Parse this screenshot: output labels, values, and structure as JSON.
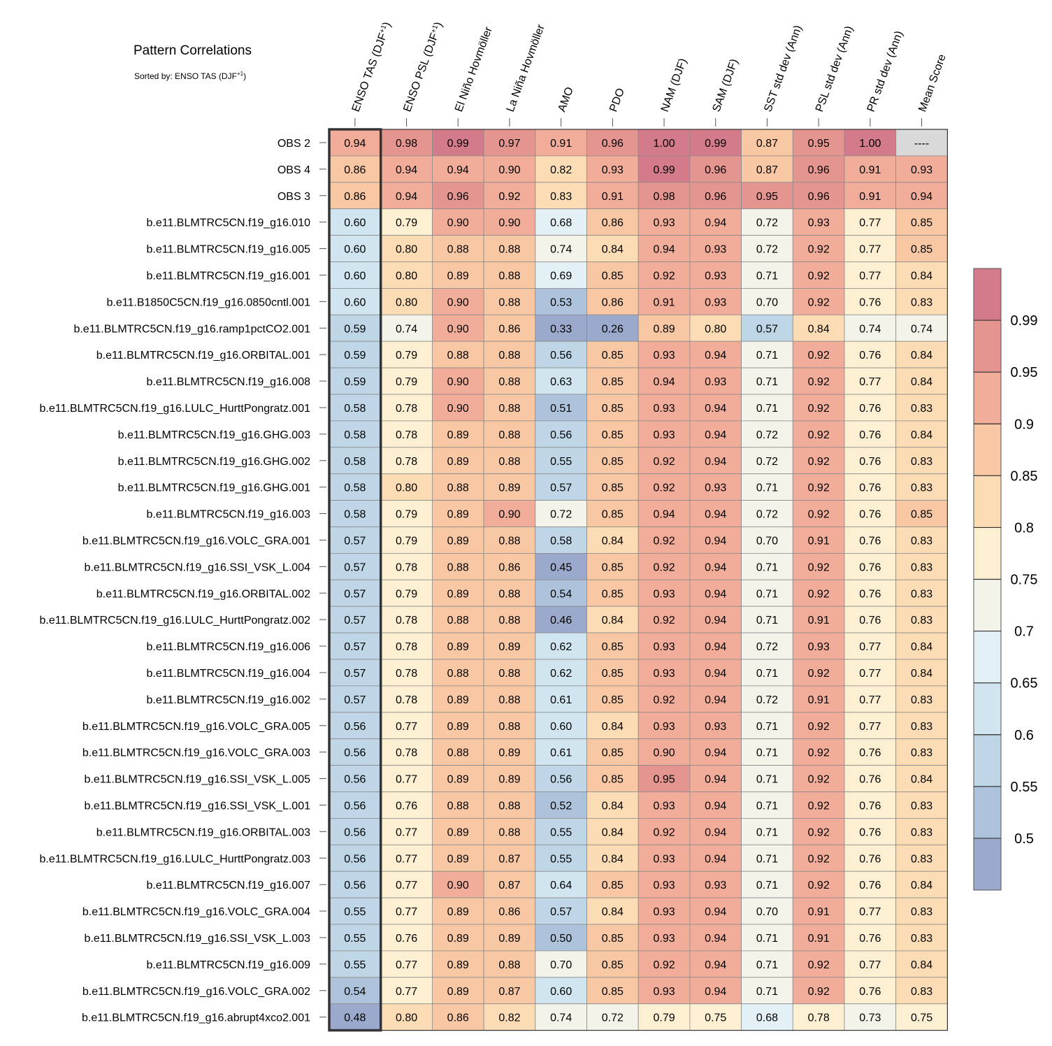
{
  "title": "Pattern Correlations",
  "subtitle_prefix": "Sorted by: ",
  "subtitle_metric": "ENSO TAS (DJF",
  "subtitle_sup": "+1",
  "subtitle_suffix": ")",
  "chart_data": {
    "type": "heatmap",
    "title": "Pattern Correlations",
    "sorted_by": "ENSO TAS (DJF+1)",
    "columns": [
      {
        "text": "ENSO TAS (DJF",
        "sup": "+1",
        "tail": ")"
      },
      {
        "text": "ENSO PSL (DJF",
        "sup": "+1",
        "tail": ")"
      },
      {
        "text": "El Niño Hovmöller",
        "sup": "",
        "tail": ""
      },
      {
        "text": "La Niña Hovmöller",
        "sup": "",
        "tail": ""
      },
      {
        "text": "AMO",
        "sup": "",
        "tail": ""
      },
      {
        "text": "PDO",
        "sup": "",
        "tail": ""
      },
      {
        "text": "NAM (DJF)",
        "sup": "",
        "tail": ""
      },
      {
        "text": "SAM (DJF)",
        "sup": "",
        "tail": ""
      },
      {
        "text": "SST std dev (Ann)",
        "sup": "",
        "tail": ""
      },
      {
        "text": "PSL std dev (Ann)",
        "sup": "",
        "tail": ""
      },
      {
        "text": "PR std dev (Ann)",
        "sup": "",
        "tail": ""
      },
      {
        "text": "Mean Score",
        "sup": "",
        "tail": ""
      }
    ],
    "rows": [
      "OBS 2",
      "OBS 4",
      "OBS 3",
      "b.e11.BLMTRC5CN.f19_g16.010",
      "b.e11.BLMTRC5CN.f19_g16.005",
      "b.e11.BLMTRC5CN.f19_g16.001",
      "b.e11.B1850C5CN.f19_g16.0850cntl.001",
      "b.e11.BLMTRC5CN.f19_g16.ramp1pctCO2.001",
      "b.e11.BLMTRC5CN.f19_g16.ORBITAL.001",
      "b.e11.BLMTRC5CN.f19_g16.008",
      "b.e11.BLMTRC5CN.f19_g16.LULC_HurttPongratz.001",
      "b.e11.BLMTRC5CN.f19_g16.GHG.003",
      "b.e11.BLMTRC5CN.f19_g16.GHG.002",
      "b.e11.BLMTRC5CN.f19_g16.GHG.001",
      "b.e11.BLMTRC5CN.f19_g16.003",
      "b.e11.BLMTRC5CN.f19_g16.VOLC_GRA.001",
      "b.e11.BLMTRC5CN.f19_g16.SSI_VSK_L.004",
      "b.e11.BLMTRC5CN.f19_g16.ORBITAL.002",
      "b.e11.BLMTRC5CN.f19_g16.LULC_HurttPongratz.002",
      "b.e11.BLMTRC5CN.f19_g16.006",
      "b.e11.BLMTRC5CN.f19_g16.004",
      "b.e11.BLMTRC5CN.f19_g16.002",
      "b.e11.BLMTRC5CN.f19_g16.VOLC_GRA.005",
      "b.e11.BLMTRC5CN.f19_g16.VOLC_GRA.003",
      "b.e11.BLMTRC5CN.f19_g16.SSI_VSK_L.005",
      "b.e11.BLMTRC5CN.f19_g16.SSI_VSK_L.001",
      "b.e11.BLMTRC5CN.f19_g16.ORBITAL.003",
      "b.e11.BLMTRC5CN.f19_g16.LULC_HurttPongratz.003",
      "b.e11.BLMTRC5CN.f19_g16.007",
      "b.e11.BLMTRC5CN.f19_g16.VOLC_GRA.004",
      "b.e11.BLMTRC5CN.f19_g16.SSI_VSK_L.003",
      "b.e11.BLMTRC5CN.f19_g16.009",
      "b.e11.BLMTRC5CN.f19_g16.VOLC_GRA.002",
      "b.e11.BLMTRC5CN.f19_g16.abrupt4xco2.001"
    ],
    "values": [
      [
        0.94,
        0.98,
        0.99,
        0.97,
        0.91,
        0.96,
        1.0,
        0.99,
        0.87,
        0.95,
        1.0,
        null
      ],
      [
        0.86,
        0.94,
        0.94,
        0.9,
        0.82,
        0.93,
        0.99,
        0.96,
        0.87,
        0.96,
        0.91,
        0.93
      ],
      [
        0.86,
        0.94,
        0.96,
        0.92,
        0.83,
        0.91,
        0.98,
        0.96,
        0.95,
        0.96,
        0.91,
        0.94
      ],
      [
        0.6,
        0.79,
        0.9,
        0.9,
        0.68,
        0.86,
        0.93,
        0.94,
        0.72,
        0.93,
        0.77,
        0.85
      ],
      [
        0.6,
        0.8,
        0.88,
        0.88,
        0.74,
        0.84,
        0.94,
        0.93,
        0.72,
        0.92,
        0.77,
        0.85
      ],
      [
        0.6,
        0.8,
        0.89,
        0.88,
        0.69,
        0.85,
        0.92,
        0.93,
        0.71,
        0.92,
        0.77,
        0.84
      ],
      [
        0.6,
        0.8,
        0.9,
        0.88,
        0.53,
        0.86,
        0.91,
        0.93,
        0.7,
        0.92,
        0.76,
        0.83
      ],
      [
        0.59,
        0.74,
        0.9,
        0.86,
        0.33,
        0.26,
        0.89,
        0.8,
        0.57,
        0.84,
        0.74,
        0.74
      ],
      [
        0.59,
        0.79,
        0.88,
        0.88,
        0.56,
        0.85,
        0.93,
        0.94,
        0.71,
        0.92,
        0.76,
        0.84
      ],
      [
        0.59,
        0.79,
        0.9,
        0.88,
        0.63,
        0.85,
        0.94,
        0.93,
        0.71,
        0.92,
        0.77,
        0.84
      ],
      [
        0.58,
        0.78,
        0.9,
        0.88,
        0.51,
        0.85,
        0.93,
        0.94,
        0.71,
        0.92,
        0.76,
        0.83
      ],
      [
        0.58,
        0.78,
        0.89,
        0.88,
        0.56,
        0.85,
        0.93,
        0.94,
        0.72,
        0.92,
        0.76,
        0.84
      ],
      [
        0.58,
        0.78,
        0.89,
        0.88,
        0.55,
        0.85,
        0.92,
        0.94,
        0.72,
        0.92,
        0.76,
        0.83
      ],
      [
        0.58,
        0.8,
        0.88,
        0.89,
        0.57,
        0.85,
        0.92,
        0.93,
        0.71,
        0.92,
        0.76,
        0.83
      ],
      [
        0.58,
        0.79,
        0.89,
        0.9,
        0.72,
        0.85,
        0.94,
        0.94,
        0.72,
        0.92,
        0.76,
        0.85
      ],
      [
        0.57,
        0.79,
        0.89,
        0.88,
        0.58,
        0.84,
        0.92,
        0.94,
        0.7,
        0.91,
        0.76,
        0.83
      ],
      [
        0.57,
        0.78,
        0.88,
        0.86,
        0.45,
        0.85,
        0.92,
        0.94,
        0.71,
        0.92,
        0.76,
        0.83
      ],
      [
        0.57,
        0.79,
        0.89,
        0.88,
        0.54,
        0.85,
        0.93,
        0.94,
        0.71,
        0.92,
        0.76,
        0.83
      ],
      [
        0.57,
        0.78,
        0.88,
        0.88,
        0.46,
        0.84,
        0.92,
        0.94,
        0.71,
        0.91,
        0.76,
        0.83
      ],
      [
        0.57,
        0.78,
        0.89,
        0.89,
        0.62,
        0.85,
        0.93,
        0.94,
        0.72,
        0.93,
        0.77,
        0.84
      ],
      [
        0.57,
        0.78,
        0.88,
        0.88,
        0.62,
        0.85,
        0.93,
        0.94,
        0.71,
        0.92,
        0.77,
        0.84
      ],
      [
        0.57,
        0.78,
        0.89,
        0.88,
        0.61,
        0.85,
        0.92,
        0.94,
        0.72,
        0.91,
        0.77,
        0.83
      ],
      [
        0.56,
        0.77,
        0.89,
        0.88,
        0.6,
        0.84,
        0.93,
        0.93,
        0.71,
        0.92,
        0.77,
        0.83
      ],
      [
        0.56,
        0.78,
        0.88,
        0.89,
        0.61,
        0.85,
        0.9,
        0.94,
        0.71,
        0.92,
        0.76,
        0.83
      ],
      [
        0.56,
        0.77,
        0.89,
        0.89,
        0.56,
        0.85,
        0.95,
        0.94,
        0.71,
        0.92,
        0.76,
        0.84
      ],
      [
        0.56,
        0.76,
        0.88,
        0.88,
        0.52,
        0.84,
        0.93,
        0.94,
        0.71,
        0.92,
        0.76,
        0.83
      ],
      [
        0.56,
        0.77,
        0.89,
        0.88,
        0.55,
        0.84,
        0.92,
        0.94,
        0.71,
        0.92,
        0.76,
        0.83
      ],
      [
        0.56,
        0.77,
        0.89,
        0.87,
        0.55,
        0.84,
        0.93,
        0.94,
        0.71,
        0.92,
        0.76,
        0.83
      ],
      [
        0.56,
        0.77,
        0.9,
        0.87,
        0.64,
        0.85,
        0.93,
        0.93,
        0.71,
        0.92,
        0.76,
        0.84
      ],
      [
        0.55,
        0.77,
        0.89,
        0.86,
        0.57,
        0.84,
        0.93,
        0.94,
        0.7,
        0.91,
        0.77,
        0.83
      ],
      [
        0.55,
        0.76,
        0.89,
        0.89,
        0.5,
        0.85,
        0.93,
        0.94,
        0.71,
        0.91,
        0.76,
        0.83
      ],
      [
        0.55,
        0.77,
        0.89,
        0.88,
        0.7,
        0.85,
        0.92,
        0.94,
        0.71,
        0.92,
        0.77,
        0.84
      ],
      [
        0.54,
        0.77,
        0.89,
        0.87,
        0.6,
        0.85,
        0.93,
        0.94,
        0.71,
        0.92,
        0.76,
        0.83
      ],
      [
        0.48,
        0.8,
        0.86,
        0.82,
        0.74,
        0.72,
        0.79,
        0.75,
        0.68,
        0.78,
        0.73,
        0.75
      ]
    ],
    "missing_label": "----",
    "highlighted_column": "ENSO TAS (DJF+1)",
    "colorbar": {
      "levels": [
        0.5,
        0.55,
        0.6,
        0.65,
        0.7,
        0.75,
        0.8,
        0.85,
        0.9,
        0.95,
        0.99
      ],
      "labels": [
        "0.5",
        "0.55",
        "0.6",
        "0.65",
        "0.7",
        "0.75",
        "0.8",
        "0.85",
        "0.9",
        "0.95",
        "0.99"
      ],
      "colors": [
        "#9ba9cc",
        "#adc3dc",
        "#bfd6e6",
        "#d0e5ef",
        "#e3f1f6",
        "#f3f3ea",
        "#fdf0d2",
        "#fbdcb4",
        "#f8c7a4",
        "#f1ad99",
        "#e4958f",
        "#d37b8b"
      ]
    },
    "missing_color": "#d9d9d9"
  }
}
